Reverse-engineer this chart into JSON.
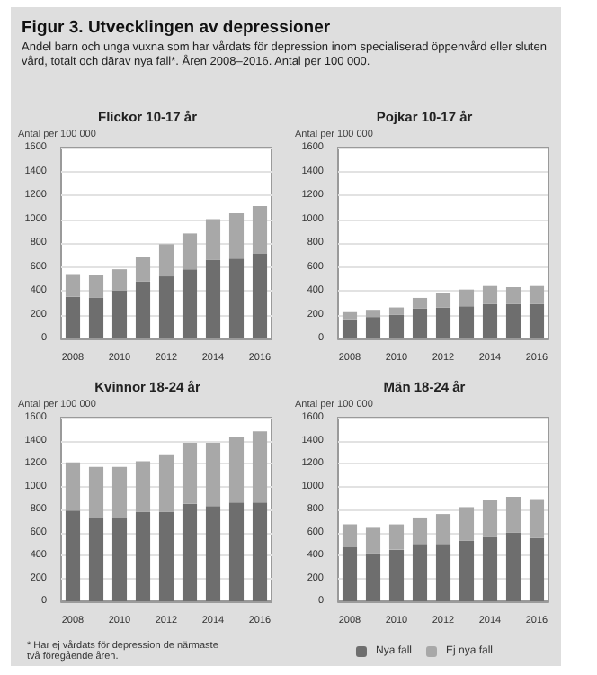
{
  "chart_data": [
    {
      "type": "bar",
      "stacked": true,
      "title": "Flickor 10-17 år",
      "ylabel": "Antal per 100 000",
      "annotations": [
        "Figur 3. Utvecklingen av depressioner",
        "Andel barn och unga vuxna som har vårdats för depression inom specialiserad öppenvård eller sluten vård, totalt och därav nya fall*. Åren 2008–2016.  Antal per 100 000."
      ],
      "categories": [
        "2008",
        null,
        "2010",
        null,
        "2012",
        null,
        "2014",
        null,
        "2016"
      ],
      "ylim": [
        0,
        1600
      ],
      "yticks": [
        0,
        200,
        400,
        600,
        800,
        1000,
        1200,
        1400,
        1600
      ],
      "grid": "y",
      "series": [
        {
          "color": "#6e6e6e",
          "values": [
            350,
            340,
            400,
            480,
            520,
            580,
            660,
            670,
            710
          ]
        },
        {
          "color": "#a8a8a8",
          "values": [
            190,
            190,
            180,
            200,
            270,
            300,
            340,
            380,
            400
          ]
        }
      ]
    },
    {
      "type": "bar",
      "stacked": true,
      "title": "Pojkar 10-17 år",
      "ylabel": "Antal per 100 000",
      "categories": [
        "2008",
        null,
        "2010",
        null,
        "2012",
        null,
        "2014",
        null,
        "2016"
      ],
      "ylim": [
        0,
        1600
      ],
      "yticks": [
        0,
        200,
        400,
        600,
        800,
        1000,
        1200,
        1400,
        1600
      ],
      "grid": "y",
      "series": [
        {
          "color": "#6e6e6e",
          "values": [
            160,
            180,
            200,
            250,
            260,
            270,
            290,
            290,
            290
          ]
        },
        {
          "color": "#a8a8a8",
          "values": [
            60,
            60,
            60,
            90,
            120,
            140,
            150,
            140,
            150
          ]
        }
      ]
    },
    {
      "type": "bar",
      "stacked": true,
      "title": "Kvinnor 18-24 år",
      "ylabel": "Antal per 100 000",
      "annotations": [
        "* Har ej vårdats för depression de närmaste två föregående åren."
      ],
      "categories": [
        "2008",
        null,
        "2010",
        null,
        "2012",
        null,
        "2014",
        null,
        "2016"
      ],
      "ylim": [
        0,
        1600
      ],
      "yticks": [
        0,
        200,
        400,
        600,
        800,
        1000,
        1200,
        1400,
        1600
      ],
      "grid": "y",
      "series": [
        {
          "color": "#6e6e6e",
          "values": [
            790,
            730,
            730,
            780,
            780,
            850,
            830,
            860,
            860
          ]
        },
        {
          "color": "#a8a8a8",
          "values": [
            420,
            440,
            440,
            440,
            500,
            530,
            550,
            570,
            620
          ]
        }
      ]
    },
    {
      "type": "bar",
      "stacked": true,
      "title": "Män 18-24 år",
      "ylabel": "Antal per 100 000",
      "legend": "bottom",
      "categories": [
        "2008",
        null,
        "2010",
        null,
        "2012",
        null,
        "2014",
        null,
        "2016"
      ],
      "ylim": [
        0,
        1600
      ],
      "yticks": [
        0,
        200,
        400,
        600,
        800,
        1000,
        1200,
        1400,
        1600
      ],
      "grid": "y",
      "series": [
        {
          "name": "Nya fall",
          "color": "#6e6e6e",
          "values": [
            470,
            420,
            450,
            500,
            500,
            530,
            560,
            600,
            550
          ]
        },
        {
          "name": "Ej nya fall",
          "color": "#a8a8a8",
          "values": [
            200,
            220,
            220,
            230,
            260,
            290,
            320,
            310,
            340
          ]
        }
      ]
    }
  ]
}
